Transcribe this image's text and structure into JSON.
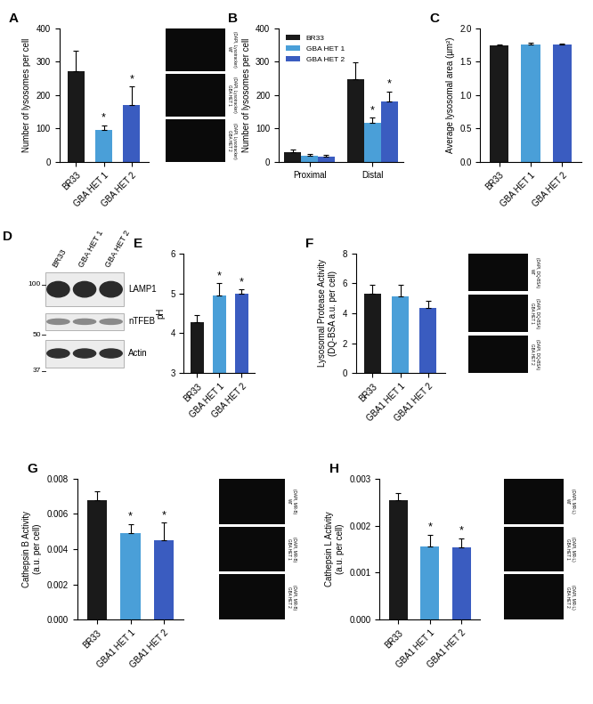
{
  "chart_data": [
    {
      "panel": "A",
      "type": "bar",
      "categories": [
        "BR33",
        "GBA HET 1",
        "GBA HET 2"
      ],
      "values": [
        272,
        95,
        170
      ],
      "errors": [
        60,
        15,
        55
      ],
      "colors": [
        "#1a1a1a",
        "#4a9fd8",
        "#3a5cc0"
      ],
      "significance": [
        null,
        "*",
        "*"
      ],
      "y_label": "Number of lysosomes per cell",
      "ylim": [
        0,
        400
      ],
      "yticks": [
        0,
        100,
        200,
        300,
        400
      ],
      "image_labels": [
        [
          "WT",
          "(DAPI, Lysotracker)"
        ],
        [
          "GBA HET 1",
          "(DAPI, Lysotracker)"
        ],
        [
          "GBA HET 2",
          "(DAPI, Lysotracker)"
        ]
      ]
    },
    {
      "panel": "B",
      "type": "bar",
      "categories": [
        "Proximal",
        "Distal"
      ],
      "series": [
        {
          "name": "BR33",
          "color": "#1a1a1a",
          "values": [
            28,
            248
          ],
          "errors": [
            8,
            50
          ],
          "significance": [
            null,
            null
          ]
        },
        {
          "name": "GBA HET 1",
          "color": "#4a9fd8",
          "values": [
            18,
            117
          ],
          "errors": [
            5,
            15
          ],
          "significance": [
            null,
            "*"
          ]
        },
        {
          "name": "GBA HET 2",
          "color": "#3a5cc0",
          "values": [
            17,
            182
          ],
          "errors": [
            4,
            28
          ],
          "significance": [
            null,
            "*"
          ]
        }
      ],
      "legend": "upper left",
      "y_label": "Number of lysosomes per cell",
      "ylim": [
        0,
        400
      ],
      "yticks": [
        0,
        100,
        200,
        300,
        400
      ]
    },
    {
      "panel": "C",
      "type": "bar",
      "categories": [
        "BR33",
        "GBA HET 1",
        "GBA HET 2"
      ],
      "values": [
        1.74,
        1.76,
        1.75
      ],
      "errors": [
        0.02,
        0.02,
        0.02
      ],
      "colors": [
        "#1a1a1a",
        "#4a9fd8",
        "#3a5cc0"
      ],
      "y_label": "Average lysosomal area (µm²)",
      "ylim": [
        0,
        2.0
      ],
      "yticks": [
        {
          "value": 0,
          "label": "0.0"
        },
        0.5,
        1.0,
        1.5,
        2.0
      ]
    },
    {
      "panel": "E",
      "type": "bar",
      "categories": [
        "BR33",
        "GBA HET 1",
        "GBA HET 2"
      ],
      "values": [
        4.28,
        4.95,
        5.0
      ],
      "errors": [
        0.18,
        0.3,
        0.1
      ],
      "colors": [
        "#1a1a1a",
        "#4a9fd8",
        "#3a5cc0"
      ],
      "significance": [
        null,
        "*",
        "*"
      ],
      "y_label": "pH",
      "ylim": [
        3,
        6
      ],
      "yticks": [
        3,
        4,
        5,
        6
      ]
    },
    {
      "panel": "F",
      "type": "bar",
      "categories": [
        "BR33",
        "GBA1 HET 1",
        "GBA1 HET 2"
      ],
      "values": [
        5.3,
        5.15,
        4.35
      ],
      "errors": [
        0.6,
        0.75,
        0.5
      ],
      "colors": [
        "#1a1a1a",
        "#4a9fd8",
        "#3a5cc0"
      ],
      "y_label": "Lysosomal Protease Activity\n(DQ-BSA a.u. per cell)",
      "ylim": [
        0,
        8
      ],
      "yticks": [
        0,
        2,
        4,
        6,
        8
      ],
      "image_labels": [
        [
          "WT",
          "(DAPI, DQ-BSA)"
        ],
        [
          "GBA HET 1",
          "(DAPI, DQ-BSA)"
        ],
        [
          "GBA HET 2",
          "(DAPI, DQ-BSA)"
        ]
      ]
    },
    {
      "panel": "G",
      "type": "bar",
      "categories": [
        "BR33",
        "GBA1 HET 1",
        "GBA1 HET 2"
      ],
      "values": [
        0.0068,
        0.0049,
        0.0045
      ],
      "errors": [
        0.0005,
        0.0005,
        0.001
      ],
      "colors": [
        "#1a1a1a",
        "#4a9fd8",
        "#3a5cc0"
      ],
      "significance": [
        null,
        "*",
        "*"
      ],
      "y_label": "Cathepsin B Activity\n(a.u. per cell)",
      "ylim": [
        0,
        0.008
      ],
      "yticks": [
        {
          "value": 0,
          "label": "0.000"
        },
        0.002,
        0.004,
        0.006,
        0.008
      ],
      "image_labels": [
        [
          "WT",
          "(DAPI, MR-B)"
        ],
        [
          "GBA HET 1",
          "(DAPI, MR-B)"
        ],
        [
          "GBA HET 2",
          "(DAPI, MR-B)"
        ]
      ]
    },
    {
      "panel": "H",
      "type": "bar",
      "categories": [
        "BR33",
        "GBA1 HET 1",
        "GBA1 HET 2"
      ],
      "values": [
        0.00255,
        0.00155,
        0.00153
      ],
      "errors": [
        0.00015,
        0.00025,
        0.0002
      ],
      "colors": [
        "#1a1a1a",
        "#4a9fd8",
        "#3a5cc0"
      ],
      "significance": [
        null,
        "*",
        "*"
      ],
      "y_label": "Cathepsin L Activity\n(a.u. per cell)",
      "ylim": [
        0,
        0.003
      ],
      "yticks": [
        {
          "value": 0,
          "label": "0.000"
        },
        0.001,
        0.002,
        0.003
      ],
      "image_labels": [
        [
          "WT",
          "(DAPI, MR-L)"
        ],
        [
          "GBA HET 1",
          "(DAPI, MR-L)"
        ],
        [
          "GBA HET 2",
          "(DAPI, MR-L)"
        ]
      ]
    }
  ],
  "blot": {
    "panel": "D",
    "lanes": [
      "BR33",
      "GBA HET 1",
      "GBA HET 2"
    ],
    "bands": [
      "LAMP1",
      "nTFEB",
      "Actin"
    ],
    "markers": [
      100,
      50,
      37
    ]
  }
}
